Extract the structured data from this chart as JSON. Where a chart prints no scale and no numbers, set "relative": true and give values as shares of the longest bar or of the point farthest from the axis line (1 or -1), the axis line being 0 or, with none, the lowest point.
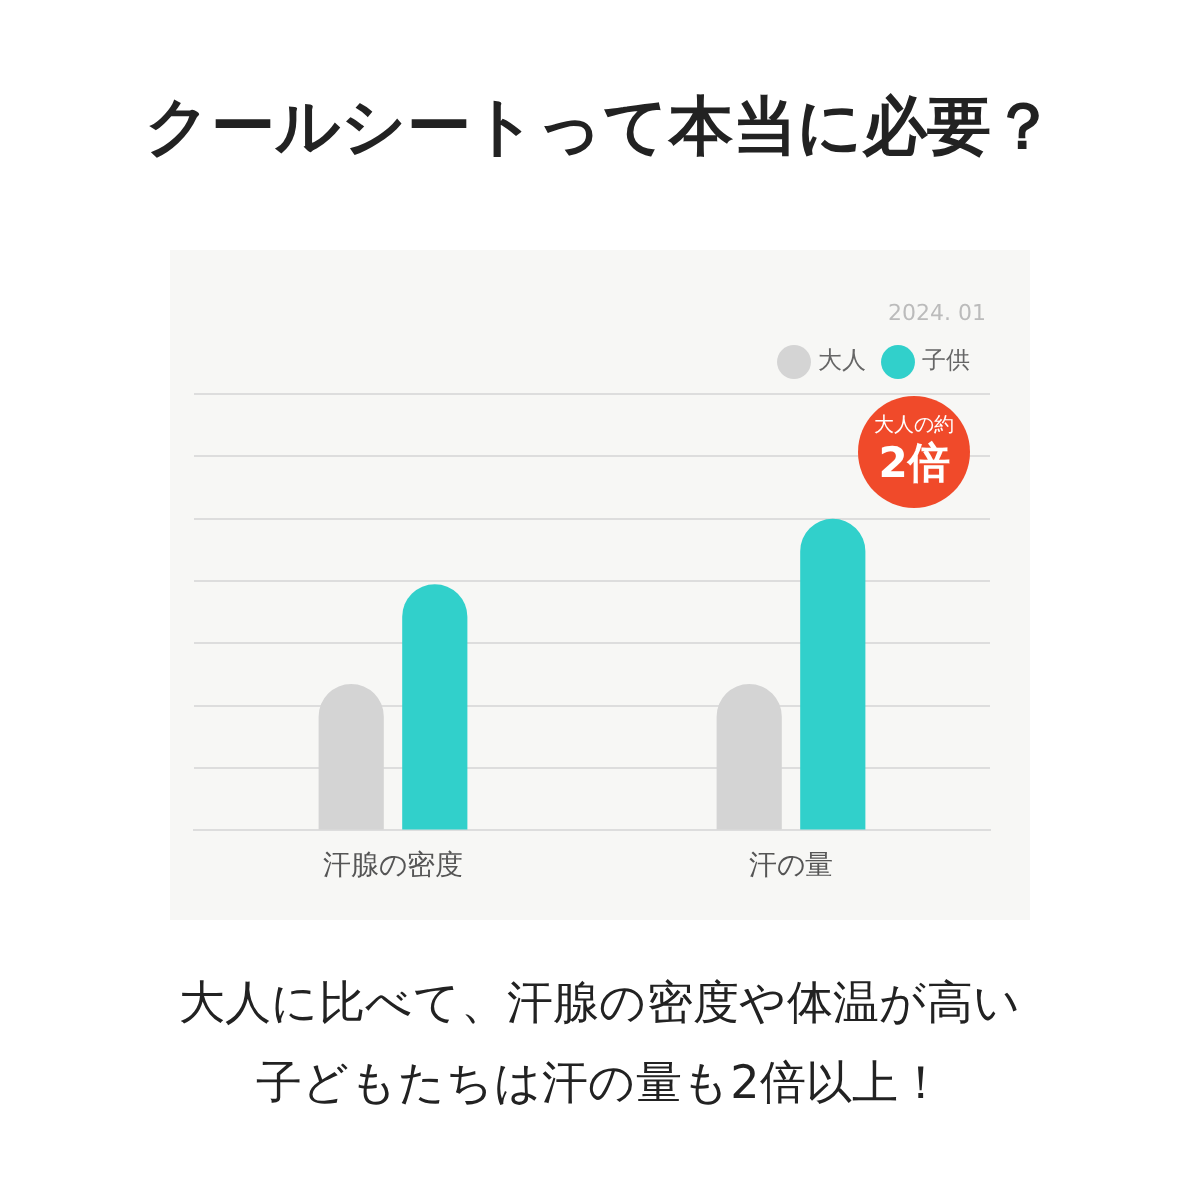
{
  "chart_data": {
    "type": "bar",
    "title": "クールシートって本当に必要？",
    "relative": true,
    "grid": "y",
    "legend": "top right",
    "categories": [
      "汗腺の密度",
      "汗の量"
    ],
    "series": [
      {
        "name": "大人",
        "color": "#d4d4d4",
        "values": [
          0.47,
          0.47
        ]
      },
      {
        "name": "子供",
        "color": "#31d0cb",
        "values": [
          0.79,
          1
        ]
      }
    ],
    "annotations": [
      "2024. 01",
      "大人の約\n2倍",
      "大人に比べて、汗腺の密度や体温が高い",
      "子どもたちは汗の量も2倍以上！"
    ]
  }
}
